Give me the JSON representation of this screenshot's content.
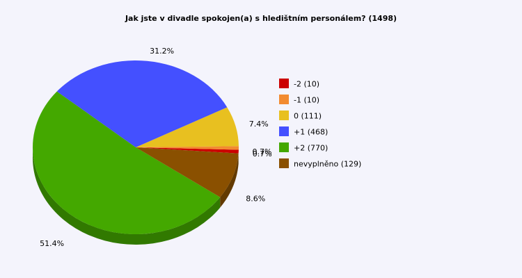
{
  "chart_data": {
    "type": "pie",
    "title": "Jak jste v divadle spokojen(a) s hledištním personálem? (1498)",
    "legend_position": "right",
    "slices": [
      {
        "legend": "-2 (10)",
        "value": 10,
        "percent_label": "0.7%",
        "color": "#cc0000"
      },
      {
        "legend": "-1 (10)",
        "value": 10,
        "percent_label": "0.7%",
        "color": "#f28b30"
      },
      {
        "legend": "0 (111)",
        "value": 111,
        "percent_label": "7.4%",
        "color": "#e8c020"
      },
      {
        "legend": "+1 (468)",
        "value": 468,
        "percent_label": "31.2%",
        "color": "#4450ff"
      },
      {
        "legend": "+2 (770)",
        "value": 770,
        "percent_label": "51.4%",
        "color": "#44a800"
      },
      {
        "legend": "nevyplněno (129)",
        "value": 129,
        "percent_label": "8.6%",
        "color": "#8a5000"
      }
    ]
  }
}
